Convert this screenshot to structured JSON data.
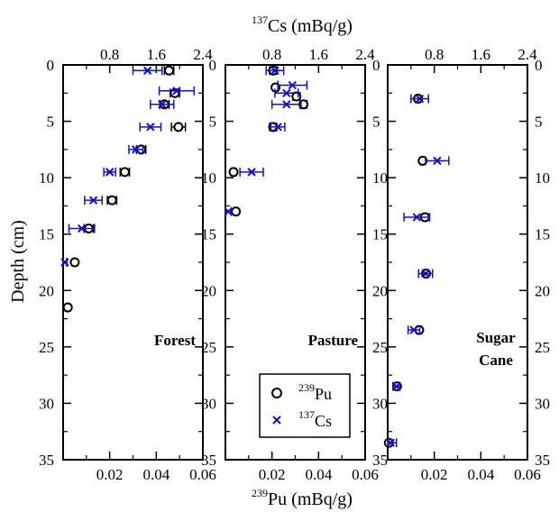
{
  "chart_data": {
    "type": "scatter",
    "top_axis": {
      "label": "137Cs (mBq/g)",
      "label_sup": "137",
      "label_main": "Cs (mBq/g)",
      "range": [
        0,
        2.4
      ],
      "ticks": [
        "0.8",
        "1.6",
        "2.4"
      ],
      "tick_values": [
        0.8,
        1.6,
        2.4
      ]
    },
    "bottom_axis": {
      "label": "239Pu (mBq/g)",
      "label_sup": "239",
      "label_main": "Pu (mBq/g)",
      "range": [
        0,
        0.06
      ],
      "ticks": [
        "0.02",
        "0.04",
        "0.06"
      ],
      "tick_values": [
        0.02,
        0.04,
        0.06
      ]
    },
    "y_axis": {
      "label": "Depth (cm)",
      "range": [
        0,
        35
      ],
      "inverted": true,
      "ticks": [
        "0",
        "5",
        "10",
        "15",
        "20",
        "25",
        "30",
        "35"
      ],
      "tick_values": [
        0,
        5,
        10,
        15,
        20,
        25,
        30,
        35
      ]
    },
    "legend": {
      "placement": "bottom-right of middle panel",
      "entries": [
        {
          "sup": "239",
          "main": "Pu",
          "marker": "circle",
          "color": "#000000"
        },
        {
          "sup": "137",
          "main": "Cs",
          "marker": "x",
          "color": "#1010d0"
        }
      ]
    },
    "panels": [
      {
        "name": "Forest",
        "label_lines": [
          "Forest"
        ],
        "pu": [
          {
            "depth": 0.5,
            "value": 0.0455,
            "err": 0.002
          },
          {
            "depth": 2.5,
            "value": 0.048,
            "err": 0.002
          },
          {
            "depth": 3.5,
            "value": 0.0435,
            "err": 0.002
          },
          {
            "depth": 5.5,
            "value": 0.0495,
            "err": 0.003
          },
          {
            "depth": 7.5,
            "value": 0.0335,
            "err": 0.002
          },
          {
            "depth": 9.5,
            "value": 0.0265,
            "err": 0.002
          },
          {
            "depth": 12.0,
            "value": 0.021,
            "err": 0.002
          },
          {
            "depth": 14.5,
            "value": 0.011,
            "err": 0.002
          },
          {
            "depth": 17.5,
            "value": 0.005,
            "err": 0.001
          },
          {
            "depth": 21.5,
            "value": 0.002,
            "err": 0.0005
          }
        ],
        "cs": [
          {
            "depth": 0.5,
            "value": 1.45,
            "err": 0.25
          },
          {
            "depth": 2.3,
            "value": 1.95,
            "err": 0.3
          },
          {
            "depth": 3.5,
            "value": 1.7,
            "err": 0.2
          },
          {
            "depth": 5.5,
            "value": 1.5,
            "err": 0.18
          },
          {
            "depth": 7.5,
            "value": 1.25,
            "err": 0.12
          },
          {
            "depth": 9.5,
            "value": 0.8,
            "err": 0.1
          },
          {
            "depth": 12.0,
            "value": 0.52,
            "err": 0.15
          },
          {
            "depth": 14.5,
            "value": 0.32,
            "err": 0.22
          },
          {
            "depth": 17.5,
            "value": 0.03,
            "err": 0.03
          }
        ]
      },
      {
        "name": "Pasture",
        "label_lines": [
          "Pasture"
        ],
        "pu": [
          {
            "depth": 0.5,
            "value": 0.0205,
            "err": 0.0015
          },
          {
            "depth": 2.0,
            "value": 0.0215,
            "err": 0.001
          },
          {
            "depth": 2.8,
            "value": 0.0305,
            "err": 0.0015
          },
          {
            "depth": 3.5,
            "value": 0.0335,
            "err": 0.0015
          },
          {
            "depth": 5.5,
            "value": 0.0205,
            "err": 0.0015
          },
          {
            "depth": 9.5,
            "value": 0.0035,
            "err": 0.001
          },
          {
            "depth": 13.0,
            "value": 0.0045,
            "err": 0.0008
          }
        ],
        "cs": [
          {
            "depth": 0.5,
            "value": 0.85,
            "err": 0.15
          },
          {
            "depth": 1.8,
            "value": 1.15,
            "err": 0.25
          },
          {
            "depth": 2.5,
            "value": 1.05,
            "err": 0.2
          },
          {
            "depth": 3.5,
            "value": 1.05,
            "err": 0.25
          },
          {
            "depth": 5.5,
            "value": 0.9,
            "err": 0.12
          },
          {
            "depth": 9.5,
            "value": 0.45,
            "err": 0.2
          },
          {
            "depth": 13.0,
            "value": 0.05,
            "err": 0.05
          }
        ]
      },
      {
        "name": "Sugar Cane",
        "label_lines": [
          "Sugar",
          "Cane"
        ],
        "pu": [
          {
            "depth": 3.0,
            "value": 0.013,
            "err": 0.001
          },
          {
            "depth": 8.5,
            "value": 0.015,
            "err": 0.001
          },
          {
            "depth": 13.5,
            "value": 0.016,
            "err": 0.001
          },
          {
            "depth": 18.5,
            "value": 0.0165,
            "err": 0.001
          },
          {
            "depth": 23.5,
            "value": 0.0135,
            "err": 0.001
          },
          {
            "depth": 28.5,
            "value": 0.004,
            "err": 0.0005
          },
          {
            "depth": 33.5,
            "value": 0.0005,
            "err": 0.0005
          }
        ],
        "cs": [
          {
            "depth": 3.0,
            "value": 0.55,
            "err": 0.15
          },
          {
            "depth": 8.5,
            "value": 0.85,
            "err": 0.2
          },
          {
            "depth": 13.5,
            "value": 0.5,
            "err": 0.22
          },
          {
            "depth": 18.5,
            "value": 0.65,
            "err": 0.12
          },
          {
            "depth": 23.5,
            "value": 0.45,
            "err": 0.1
          },
          {
            "depth": 28.5,
            "value": 0.15,
            "err": 0.06
          },
          {
            "depth": 33.5,
            "value": 0.05,
            "err": 0.1
          }
        ]
      }
    ]
  }
}
